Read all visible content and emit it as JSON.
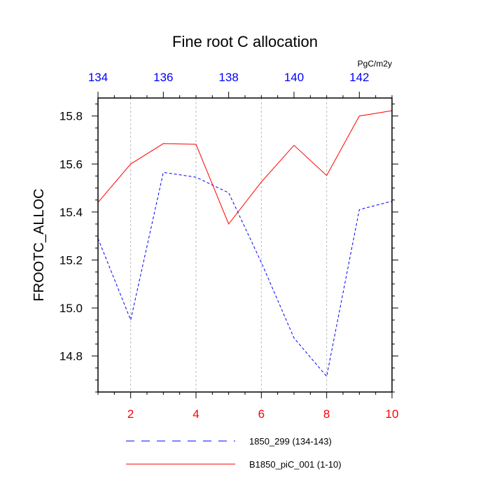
{
  "chart_data": {
    "type": "line",
    "title": "Fine root C allocation",
    "units": "PgC/m2y",
    "ylabel": "FROOTC_ALLOC",
    "xlabel": "",
    "ylim": [
      14.65,
      15.875
    ],
    "yticks": [
      14.8,
      15.0,
      15.2,
      15.4,
      15.6,
      15.8
    ],
    "ytick_labels": [
      "14.8",
      "15.0",
      "15.2",
      "15.4",
      "15.6",
      "15.8"
    ],
    "x_bottom": {
      "range": [
        1,
        10
      ],
      "ticks": [
        2,
        4,
        6,
        8,
        10
      ],
      "tick_labels": [
        "2",
        "4",
        "6",
        "8",
        "10"
      ],
      "color": "#ff0000"
    },
    "x_top": {
      "range": [
        134,
        143
      ],
      "ticks": [
        134,
        136,
        138,
        140,
        142
      ],
      "tick_labels": [
        "134",
        "136",
        "138",
        "140",
        "142"
      ],
      "color": "#0000ff"
    },
    "grid": "vertical-dashed",
    "legend_position": "bottom",
    "series": [
      {
        "name": "1850_299 (134-143)",
        "axis": "top",
        "color": "#0000ff",
        "style": "dashed",
        "x": [
          134,
          135,
          136,
          137,
          138,
          139,
          140,
          141,
          142,
          143
        ],
        "values": [
          15.29,
          14.95,
          15.565,
          15.545,
          15.48,
          15.19,
          14.875,
          14.715,
          15.41,
          15.445
        ]
      },
      {
        "name": "B1850_piC_001 (1-10)",
        "axis": "bottom",
        "color": "#ff0000",
        "style": "solid",
        "x": [
          1,
          2,
          3,
          4,
          5,
          6,
          7,
          8,
          9,
          10
        ],
        "values": [
          15.44,
          15.6,
          15.685,
          15.682,
          15.35,
          15.525,
          15.678,
          15.552,
          15.8,
          15.822
        ]
      }
    ]
  }
}
